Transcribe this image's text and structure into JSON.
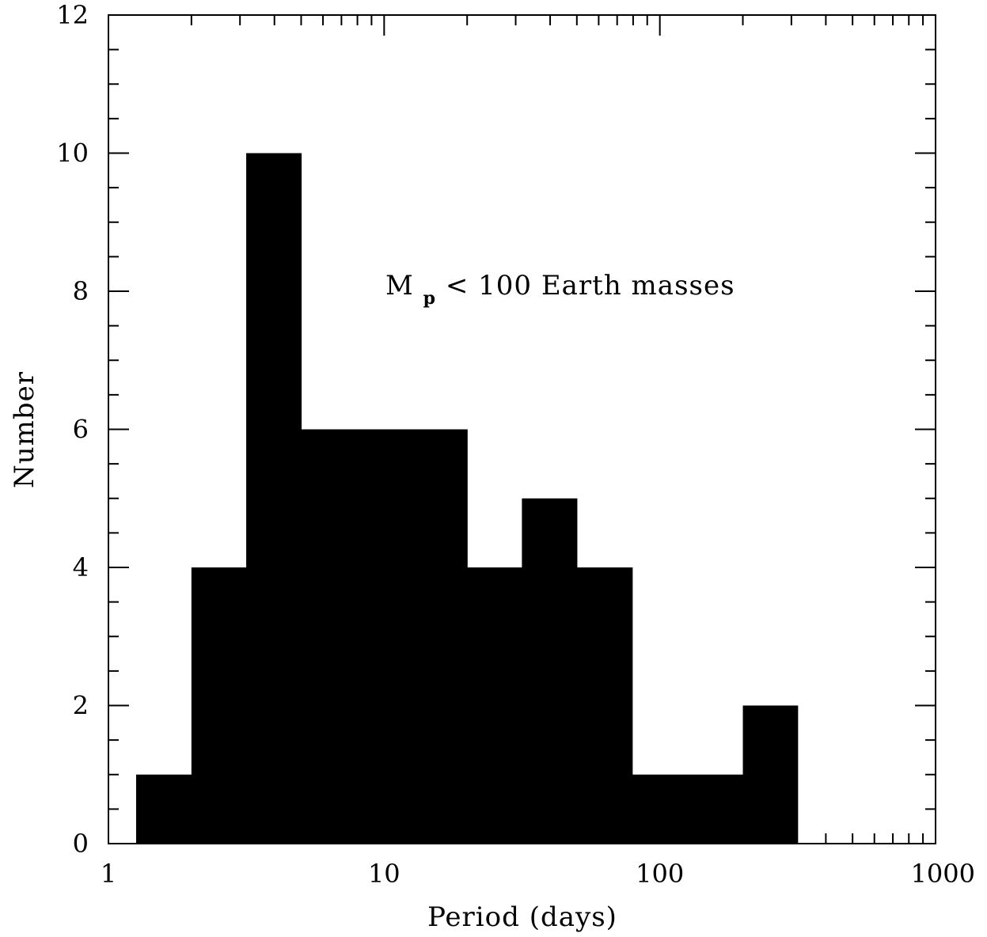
{
  "chart_data": {
    "type": "bar",
    "xscale": "log",
    "xlabel": "Period (days)",
    "ylabel": "Number",
    "xlim": [
      1,
      1000
    ],
    "ylim": [
      0,
      12
    ],
    "x_ticks": [
      "1",
      "10",
      "100",
      "1000"
    ],
    "y_ticks": [
      "0",
      "2",
      "4",
      "6",
      "8",
      "10",
      "12"
    ],
    "annotation": {
      "main": "M",
      "sub": "p",
      "rest": " < 100 Earth masses"
    },
    "bins": [
      {
        "x0": 1.26,
        "x1": 2.0,
        "value": 1
      },
      {
        "x0": 2.0,
        "x1": 3.16,
        "value": 4
      },
      {
        "x0": 3.16,
        "x1": 5.0,
        "value": 10
      },
      {
        "x0": 5.0,
        "x1": 7.9,
        "value": 6
      },
      {
        "x0": 7.9,
        "x1": 12.6,
        "value": 6
      },
      {
        "x0": 12.6,
        "x1": 20.0,
        "value": 6
      },
      {
        "x0": 20.0,
        "x1": 31.6,
        "value": 4
      },
      {
        "x0": 31.6,
        "x1": 50.0,
        "value": 5
      },
      {
        "x0": 50.0,
        "x1": 79.4,
        "value": 4
      },
      {
        "x0": 79.4,
        "x1": 126.0,
        "value": 1
      },
      {
        "x0": 126.0,
        "x1": 200.0,
        "value": 1
      },
      {
        "x0": 200.0,
        "x1": 316.0,
        "value": 2
      }
    ],
    "bar_color": "#000000"
  }
}
